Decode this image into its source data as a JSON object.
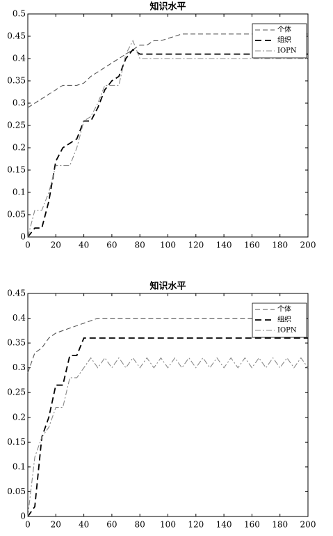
{
  "chart_data": [
    {
      "type": "line",
      "title": "知识水平",
      "legend": "upper right",
      "grid": false,
      "x": [
        0,
        5,
        10,
        15,
        20,
        25,
        30,
        35,
        40,
        45,
        50,
        55,
        60,
        65,
        70,
        75,
        80,
        85,
        90,
        95,
        100,
        105,
        110,
        115,
        120,
        125,
        130,
        135,
        140,
        145,
        150,
        155,
        160,
        165,
        170,
        175,
        180,
        185,
        190,
        195,
        200
      ],
      "xlim": [
        0,
        200
      ],
      "xticks": [
        0,
        20,
        40,
        60,
        80,
        100,
        120,
        140,
        160,
        180,
        200
      ],
      "ylim": [
        0,
        0.5
      ],
      "yticks": [
        0,
        0.05,
        0.1,
        0.15,
        0.2,
        0.25,
        0.3,
        0.35,
        0.4,
        0.45,
        0.5
      ],
      "series": [
        {
          "name": "个体",
          "color": "#555555",
          "values": [
            0.29,
            0.3,
            0.31,
            0.32,
            0.33,
            0.34,
            0.34,
            0.34,
            0.345,
            0.36,
            0.37,
            0.38,
            0.39,
            0.4,
            0.41,
            0.42,
            0.43,
            0.43,
            0.44,
            0.44,
            0.445,
            0.45,
            0.455,
            0.455,
            0.455,
            0.455,
            0.455,
            0.455,
            0.455,
            0.455,
            0.455,
            0.455,
            0.455,
            0.455,
            0.455,
            0.455,
            0.455,
            0.455,
            0.455,
            0.455,
            0.455
          ]
        },
        {
          "name": "组织",
          "color": "#000000",
          "values": [
            0,
            0.02,
            0.02,
            0.08,
            0.17,
            0.2,
            0.21,
            0.22,
            0.26,
            0.26,
            0.29,
            0.33,
            0.35,
            0.36,
            0.4,
            0.42,
            0.41,
            0.41,
            0.41,
            0.41,
            0.41,
            0.41,
            0.41,
            0.41,
            0.41,
            0.41,
            0.41,
            0.41,
            0.41,
            0.41,
            0.41,
            0.41,
            0.41,
            0.41,
            0.41,
            0.41,
            0.41,
            0.41,
            0.41,
            0.41,
            0.41
          ]
        },
        {
          "name": "IOPN",
          "color": "#888888",
          "values": [
            0,
            0.06,
            0.06,
            0.1,
            0.16,
            0.16,
            0.16,
            0.2,
            0.26,
            0.27,
            0.3,
            0.34,
            0.34,
            0.34,
            0.41,
            0.44,
            0.4,
            0.4,
            0.4,
            0.4,
            0.4,
            0.4,
            0.4,
            0.4,
            0.4,
            0.4,
            0.4,
            0.4,
            0.4,
            0.4,
            0.4,
            0.4,
            0.4,
            0.4,
            0.4,
            0.4,
            0.4,
            0.4,
            0.4,
            0.4,
            0.4
          ]
        }
      ]
    },
    {
      "type": "line",
      "title": "知识水平",
      "legend": "upper right",
      "grid": false,
      "x": [
        0,
        5,
        10,
        15,
        20,
        25,
        30,
        35,
        40,
        45,
        50,
        55,
        60,
        65,
        70,
        75,
        80,
        85,
        90,
        95,
        100,
        105,
        110,
        115,
        120,
        125,
        130,
        135,
        140,
        145,
        150,
        155,
        160,
        165,
        170,
        175,
        180,
        185,
        190,
        195,
        200
      ],
      "xlim": [
        0,
        200
      ],
      "xticks": [
        0,
        20,
        40,
        60,
        80,
        100,
        120,
        140,
        160,
        180,
        200
      ],
      "ylim": [
        0,
        0.45
      ],
      "yticks": [
        0,
        0.05,
        0.1,
        0.15,
        0.2,
        0.25,
        0.3,
        0.35,
        0.4,
        0.45
      ],
      "series": [
        {
          "name": "个体",
          "color": "#555555",
          "values": [
            0.29,
            0.33,
            0.34,
            0.36,
            0.37,
            0.375,
            0.38,
            0.385,
            0.39,
            0.395,
            0.4,
            0.4,
            0.4,
            0.4,
            0.4,
            0.4,
            0.4,
            0.4,
            0.4,
            0.4,
            0.4,
            0.4,
            0.4,
            0.4,
            0.4,
            0.4,
            0.4,
            0.4,
            0.4,
            0.4,
            0.4,
            0.4,
            0.4,
            0.4,
            0.4,
            0.4,
            0.4,
            0.4,
            0.4,
            0.4,
            0.4
          ]
        },
        {
          "name": "组织",
          "color": "#000000",
          "values": [
            0,
            0.02,
            0.16,
            0.2,
            0.265,
            0.265,
            0.325,
            0.325,
            0.36,
            0.36,
            0.36,
            0.36,
            0.36,
            0.36,
            0.36,
            0.36,
            0.36,
            0.36,
            0.36,
            0.36,
            0.36,
            0.36,
            0.36,
            0.36,
            0.36,
            0.36,
            0.36,
            0.36,
            0.36,
            0.36,
            0.36,
            0.36,
            0.36,
            0.36,
            0.36,
            0.36,
            0.36,
            0.36,
            0.36,
            0.36,
            0.36
          ]
        },
        {
          "name": "IOPN",
          "color": "#888888",
          "values": [
            0,
            0.12,
            0.16,
            0.18,
            0.22,
            0.22,
            0.28,
            0.28,
            0.3,
            0.32,
            0.3,
            0.32,
            0.3,
            0.32,
            0.3,
            0.32,
            0.3,
            0.32,
            0.3,
            0.32,
            0.3,
            0.32,
            0.3,
            0.32,
            0.3,
            0.32,
            0.3,
            0.32,
            0.3,
            0.32,
            0.3,
            0.32,
            0.3,
            0.32,
            0.3,
            0.32,
            0.3,
            0.32,
            0.3,
            0.32,
            0.3
          ]
        }
      ]
    }
  ]
}
